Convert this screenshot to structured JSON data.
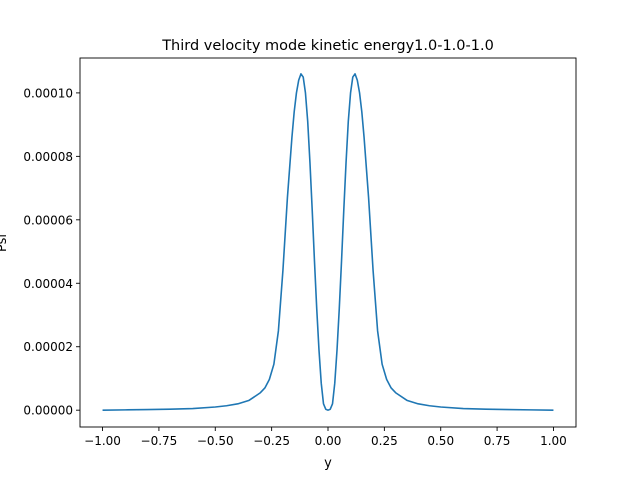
{
  "colors": {
    "line": "#1f77b4",
    "axes": "#000000",
    "background": "#ffffff"
  },
  "chart_data": {
    "type": "line",
    "title": "Third velocity mode kinetic energy1.0-1.0-1.0",
    "xlabel": "y",
    "ylabel": "Psi",
    "xlim": [
      -1.1,
      1.1
    ],
    "ylim": [
      -5.3e-06,
      0.000111
    ],
    "grid": false,
    "x_ticks": [
      -1.0,
      -0.75,
      -0.5,
      -0.25,
      0.0,
      0.25,
      0.5,
      0.75,
      1.0
    ],
    "x_tick_labels": [
      "−1.00",
      "−0.75",
      "−0.50",
      "−0.25",
      "0.00",
      "0.25",
      "0.50",
      "0.75",
      "1.00"
    ],
    "y_ticks": [
      0.0,
      2e-05,
      4e-05,
      6e-05,
      8e-05,
      0.0001
    ],
    "y_tick_labels": [
      "0.00000",
      "0.00002",
      "0.00004",
      "0.00006",
      "0.00008",
      "0.00010"
    ],
    "series": [
      {
        "x": [
          -1.0,
          -0.9,
          -0.8,
          -0.7,
          -0.6,
          -0.5,
          -0.45,
          -0.4,
          -0.35,
          -0.3,
          -0.28,
          -0.26,
          -0.24,
          -0.22,
          -0.2,
          -0.18,
          -0.16,
          -0.15,
          -0.14,
          -0.13,
          -0.12,
          -0.11,
          -0.1,
          -0.09,
          -0.08,
          -0.07,
          -0.06,
          -0.05,
          -0.04,
          -0.03,
          -0.02,
          -0.01,
          0.0,
          0.01,
          0.02,
          0.03,
          0.04,
          0.05,
          0.06,
          0.07,
          0.08,
          0.09,
          0.1,
          0.11,
          0.12,
          0.13,
          0.14,
          0.15,
          0.16,
          0.18,
          0.2,
          0.22,
          0.24,
          0.26,
          0.28,
          0.3,
          0.35,
          0.4,
          0.45,
          0.5,
          0.6,
          0.7,
          0.8,
          0.9,
          1.0
        ],
        "y": [
          0.0,
          1e-07,
          2e-07,
          3e-07,
          5e-07,
          1e-06,
          1.4e-06,
          2e-06,
          3.1e-06,
          5.5e-06,
          7e-06,
          9.7e-06,
          1.45e-05,
          2.5e-05,
          4.4e-05,
          6.7e-05,
          8.6e-05,
          9.4e-05,
          0.0001,
          0.000104,
          0.000106,
          0.000105,
          0.0001,
          9.1e-05,
          7.8e-05,
          6.3e-05,
          4.7e-05,
          3.2e-05,
          1.9e-05,
          8.5e-06,
          2e-06,
          3e-07,
          0.0,
          3e-07,
          2e-06,
          8.5e-06,
          1.9e-05,
          3.2e-05,
          4.7e-05,
          6.3e-05,
          7.8e-05,
          9.1e-05,
          0.0001,
          0.000105,
          0.000106,
          0.000104,
          0.0001,
          9.4e-05,
          8.6e-05,
          6.7e-05,
          4.4e-05,
          2.5e-05,
          1.45e-05,
          9.7e-06,
          7e-06,
          5.5e-06,
          3.1e-06,
          2e-06,
          1.4e-06,
          1e-06,
          5e-07,
          3e-07,
          2e-07,
          1e-07,
          0.0
        ]
      }
    ]
  }
}
